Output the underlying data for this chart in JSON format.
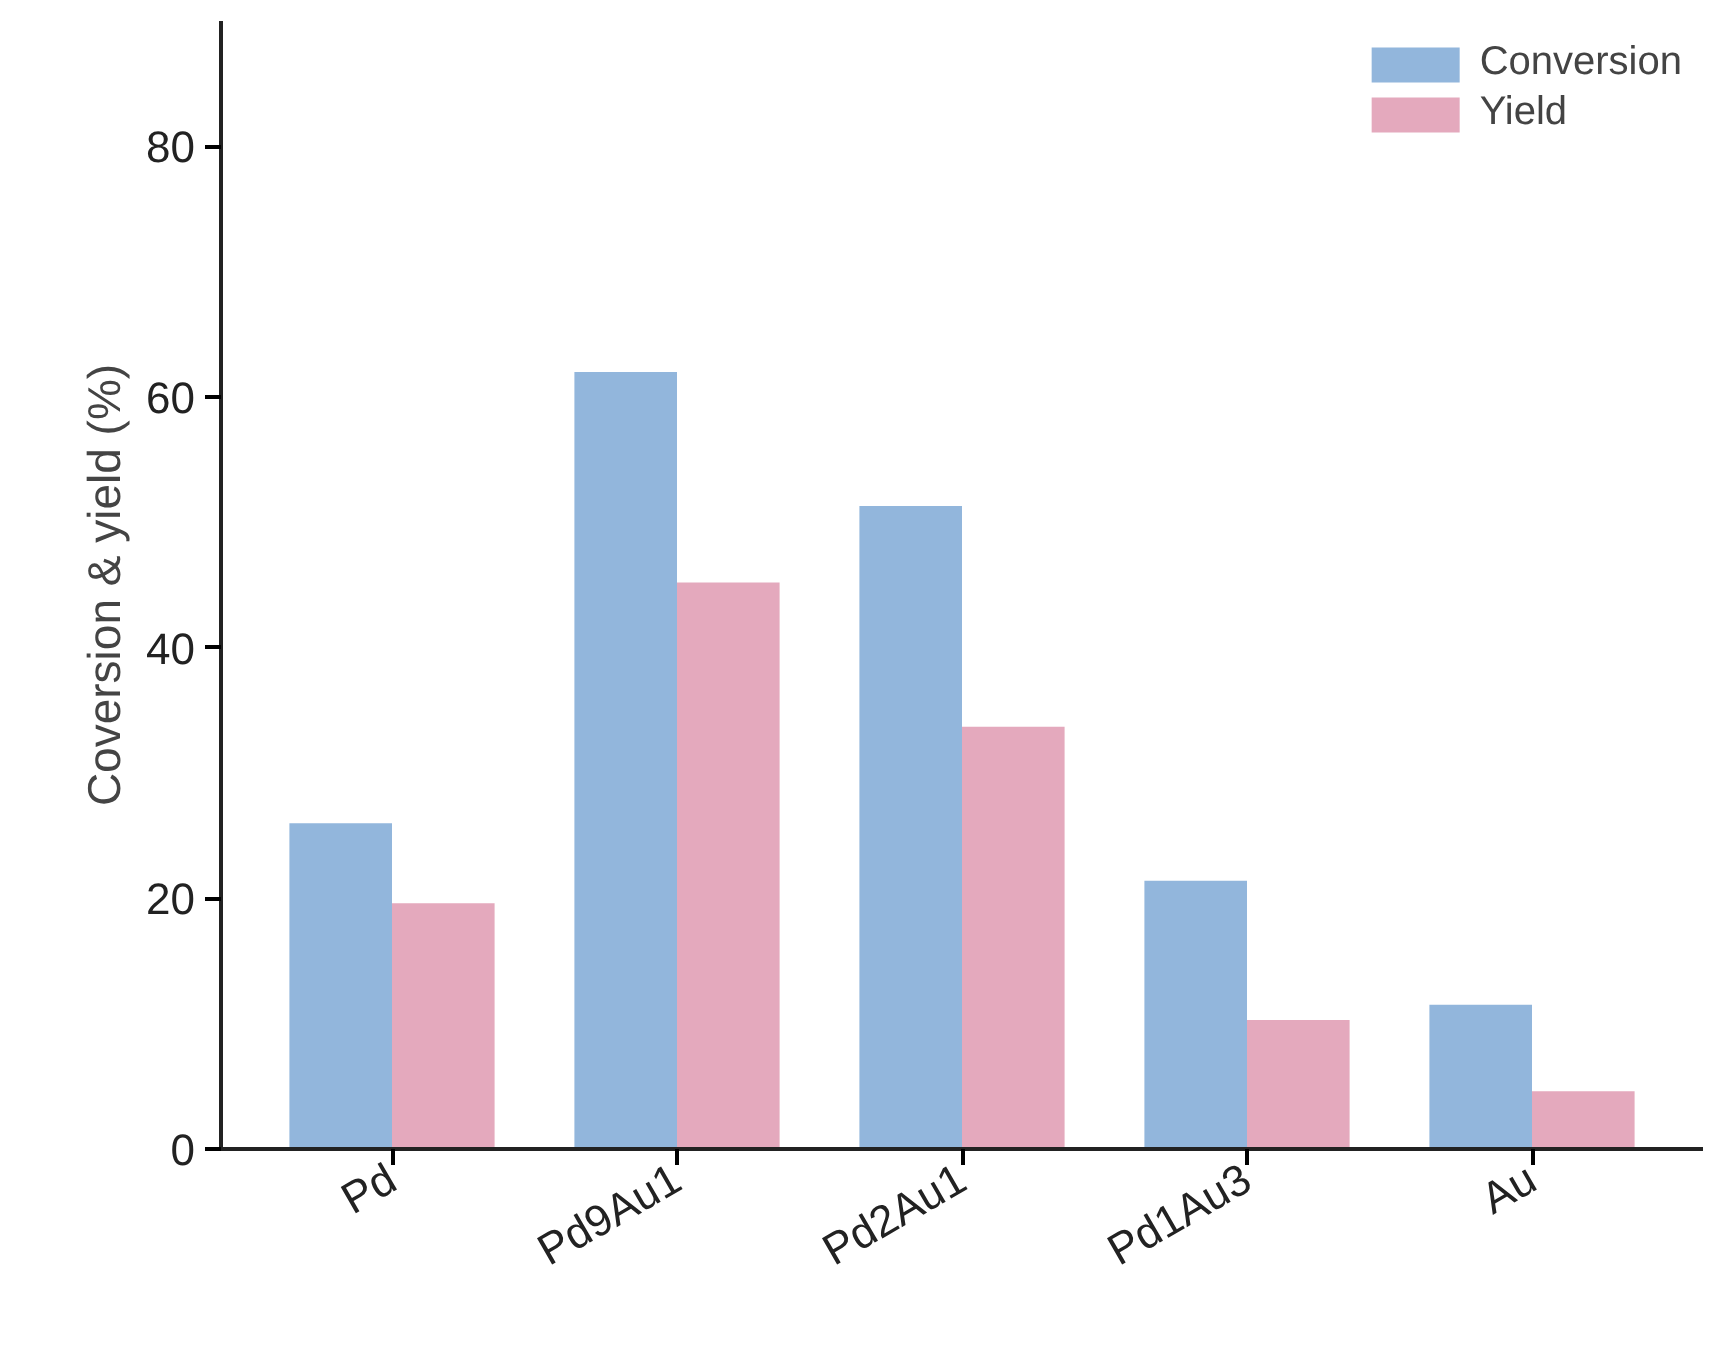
{
  "chart_data": {
    "type": "bar",
    "ylabel": "Coversion & yield (%)",
    "categories": [
      "Pd",
      "Pd9Au1",
      "Pd2Au1",
      "Pd1Au3",
      "Au"
    ],
    "series": [
      {
        "name": "Conversion",
        "color": "#92b6dc",
        "values": [
          26,
          62,
          51.3,
          21.4,
          11.5
        ]
      },
      {
        "name": "Yield",
        "color": "#e4a9bd",
        "values": [
          19.6,
          45.2,
          33.7,
          10.3,
          4.6
        ]
      }
    ],
    "ylim": [
      0,
      90
    ],
    "yticks": [
      0,
      20,
      40,
      60,
      80
    ],
    "grid": false,
    "legend": "top right"
  }
}
